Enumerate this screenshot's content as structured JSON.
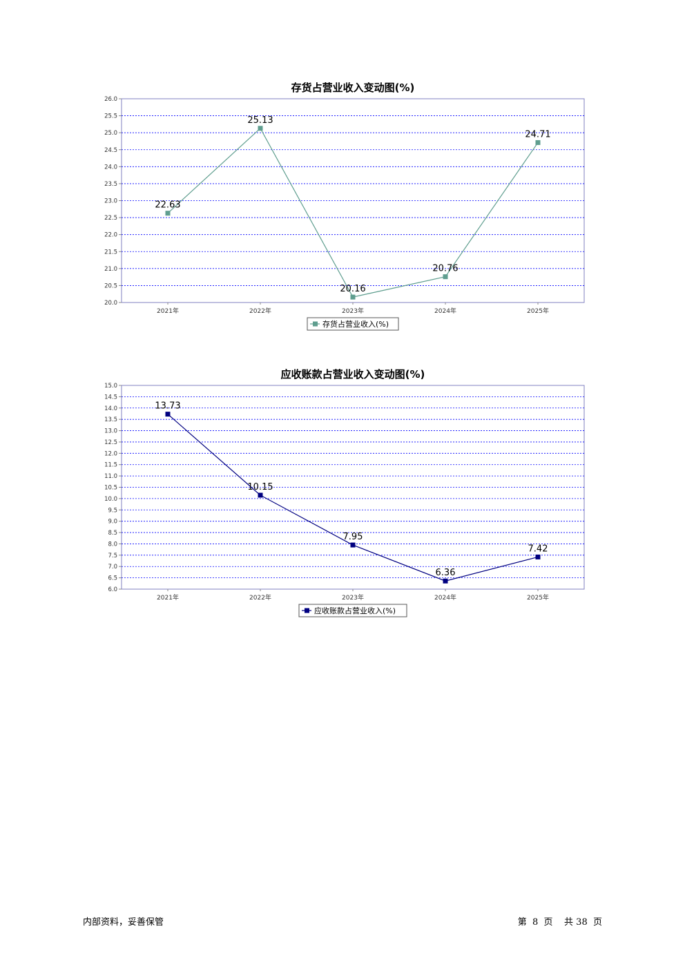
{
  "chart_data": [
    {
      "type": "line",
      "title": "存货占营业收入变动图(%)",
      "categories": [
        "2021年",
        "2022年",
        "2023年",
        "2024年",
        "2025年"
      ],
      "series": [
        {
          "name": "存货占营业收入(%)",
          "values": [
            22.63,
            25.13,
            20.16,
            20.76,
            24.71
          ],
          "color": "#5f9e8f"
        }
      ],
      "ylim": [
        20.0,
        26.0
      ],
      "ytick_step": 0.5,
      "yticks": [
        "20.0",
        "20.5",
        "21.0",
        "21.5",
        "22.0",
        "22.5",
        "23.0",
        "23.5",
        "24.0",
        "24.5",
        "25.0",
        "25.5",
        "26.0"
      ],
      "grid": true,
      "legend": "bottom-center",
      "xlabel": "",
      "ylabel": ""
    },
    {
      "type": "line",
      "title": "应收账款占营业收入变动图(%)",
      "categories": [
        "2021年",
        "2022年",
        "2023年",
        "2024年",
        "2025年"
      ],
      "series": [
        {
          "name": "应收账款占营业收入(%)",
          "values": [
            13.73,
            10.15,
            7.95,
            6.36,
            7.42
          ],
          "color": "#000080"
        }
      ],
      "ylim": [
        6.0,
        15.0
      ],
      "ytick_step": 0.5,
      "yticks": [
        "6.0",
        "6.5",
        "7.0",
        "7.5",
        "8.0",
        "8.5",
        "9.0",
        "9.5",
        "10.0",
        "10.5",
        "11.0",
        "11.5",
        "12.0",
        "12.5",
        "13.0",
        "13.5",
        "14.0",
        "14.5",
        "15.0"
      ],
      "grid": true,
      "legend": "bottom-center",
      "xlabel": "",
      "ylabel": ""
    }
  ],
  "footer": {
    "left": "内部资料，妥善保管",
    "page": "第  8  页    共 38  页"
  },
  "colors": {
    "grid": "#0000ff",
    "plot_border": "#8080c0"
  }
}
